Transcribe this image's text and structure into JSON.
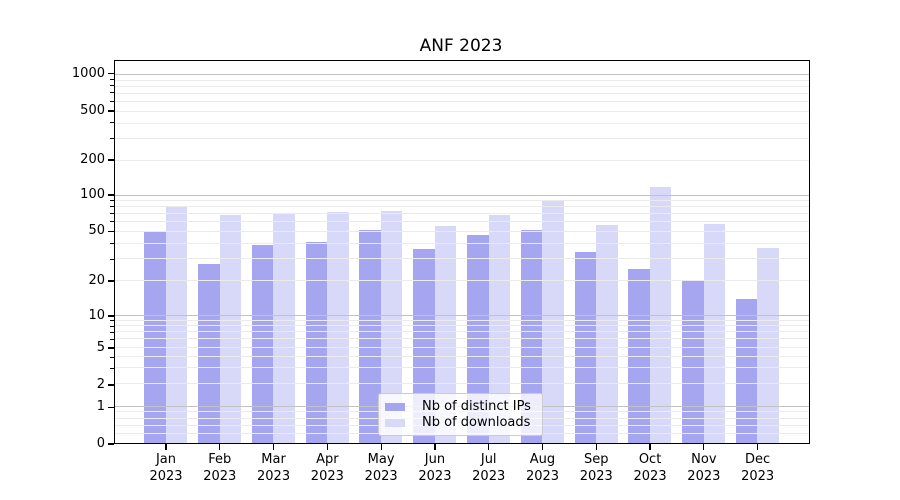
{
  "chart_data": {
    "type": "bar",
    "title": "ANF 2023",
    "categories": [
      "Jan 2023",
      "Feb 2023",
      "Mar 2023",
      "Apr 2023",
      "May 2023",
      "Jun 2023",
      "Jul 2023",
      "Aug 2023",
      "Sep 2023",
      "Oct 2023",
      "Nov 2023",
      "Dec 2023"
    ],
    "series": [
      {
        "name": "Nb of distinct IPs",
        "color": "#a6a6f0",
        "values": [
          50,
          27,
          39,
          41,
          51,
          36,
          47,
          51,
          34,
          25,
          20,
          14
        ]
      },
      {
        "name": "Nb of downloads",
        "color": "#d8d8f8",
        "values": [
          80,
          69,
          71,
          72,
          74,
          55,
          69,
          92,
          56,
          118,
          58,
          37
        ]
      }
    ],
    "legend": {
      "labels": [
        "Nb of distinct IPs",
        "Nb of downloads"
      ],
      "position": "lower center"
    },
    "x_axis": {
      "label_year_line": "2023"
    },
    "y_axis": {
      "scale": "symlog",
      "ylim": [
        0,
        1300
      ],
      "tick_values": [
        0,
        1,
        2,
        5,
        10,
        20,
        50,
        100,
        200,
        500,
        1000
      ],
      "major_grid_values": [
        1,
        10,
        100,
        1000
      ],
      "minor_grid_values": [
        2,
        3,
        4,
        5,
        6,
        7,
        8,
        9,
        20,
        30,
        40,
        50,
        60,
        70,
        80,
        90,
        200,
        300,
        400,
        500,
        600,
        700,
        800,
        900
      ],
      "anchors": [
        [
          0,
          1.0
        ],
        [
          1,
          0.9049
        ],
        [
          2,
          0.8464
        ],
        [
          5,
          0.75
        ],
        [
          10,
          0.6667
        ],
        [
          20,
          0.5755
        ],
        [
          50,
          0.4464
        ],
        [
          100,
          0.3516
        ],
        [
          200,
          0.2604
        ],
        [
          500,
          0.1328
        ],
        [
          1000,
          0.0352
        ]
      ],
      "sub_one_minor_fractions": [
        0.9193,
        0.9365,
        0.9539,
        0.975
      ],
      "decade_fraction": 0.3151
    },
    "grid": {
      "major_color": "#c2c2c2",
      "minor_color": "#ebebeb"
    }
  }
}
